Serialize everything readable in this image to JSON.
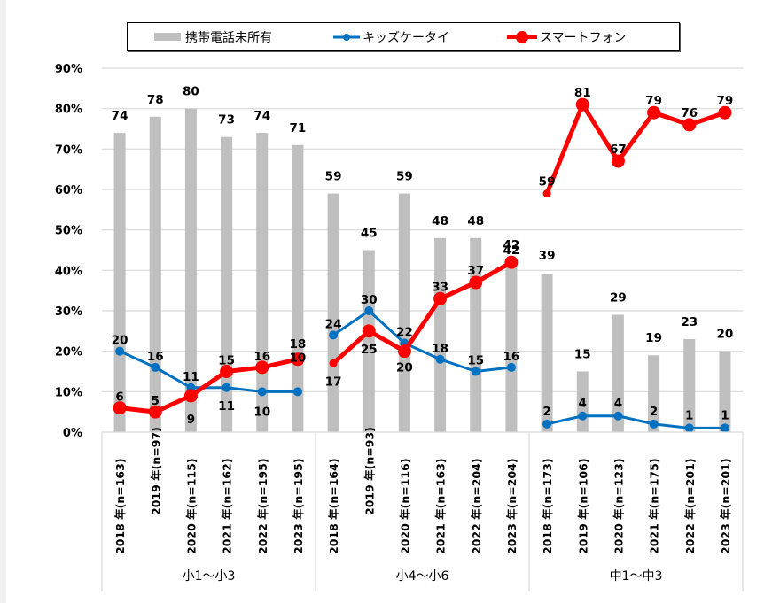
{
  "chart_data": {
    "type": "bar",
    "title": "",
    "xlabel": "",
    "ylabel": "",
    "ylim": [
      0,
      90
    ],
    "ytick_step": 10,
    "ytick_labels": [
      "0%",
      "10%",
      "20%",
      "30%",
      "40%",
      "50%",
      "60%",
      "70%",
      "80%",
      "90%"
    ],
    "grid": true,
    "legend_position": "top",
    "groups": [
      {
        "name": "小1〜小3",
        "categories": [
          "2018 年(n=163)",
          "2019 年(n=97)",
          "2020 年(n=115)",
          "2021 年(n=162)",
          "2022 年(n=195)",
          "2023 年(n=195)"
        ]
      },
      {
        "name": "小4〜小6",
        "categories": [
          "2018 年(n=164)",
          "2019 年(n=93)",
          "2020 年(n=116)",
          "2021 年(n=163)",
          "2022 年(n=204)",
          "2023 年(n=204)"
        ]
      },
      {
        "name": "中1〜中3",
        "categories": [
          "2018 年(n=173)",
          "2019 年(n=106)",
          "2020 年(n=123)",
          "2021 年(n=175)",
          "2022 年(n=201)",
          "2023 年(n=201)"
        ]
      }
    ],
    "series": [
      {
        "name": "携帯電話未所有",
        "kind": "bar",
        "color": "#bfbfbf",
        "values": [
          [
            74,
            78,
            80,
            73,
            74,
            71
          ],
          [
            59,
            45,
            59,
            48,
            48,
            42
          ],
          [
            39,
            15,
            29,
            19,
            23,
            20
          ]
        ]
      },
      {
        "name": "キッズケータイ",
        "kind": "line",
        "color": "#0070c0",
        "values": [
          [
            20,
            16,
            11,
            11,
            10,
            10
          ],
          [
            24,
            30,
            22,
            18,
            15,
            16
          ],
          [
            2,
            4,
            4,
            2,
            1,
            1
          ]
        ]
      },
      {
        "name": "スマートフォン",
        "kind": "line",
        "color": "#ff0000",
        "values": [
          [
            6,
            5,
            9,
            15,
            16,
            18
          ],
          [
            17,
            25,
            20,
            33,
            37,
            42
          ],
          [
            59,
            81,
            67,
            79,
            76,
            79
          ]
        ]
      }
    ]
  },
  "legend": {
    "items": [
      {
        "label": "携帯電話未所有",
        "symbol": "gray-bar-swatch"
      },
      {
        "label": "キッズケータイ",
        "symbol": "blue-line-marker"
      },
      {
        "label": "スマートフォン",
        "symbol": "red-line-marker"
      }
    ]
  }
}
